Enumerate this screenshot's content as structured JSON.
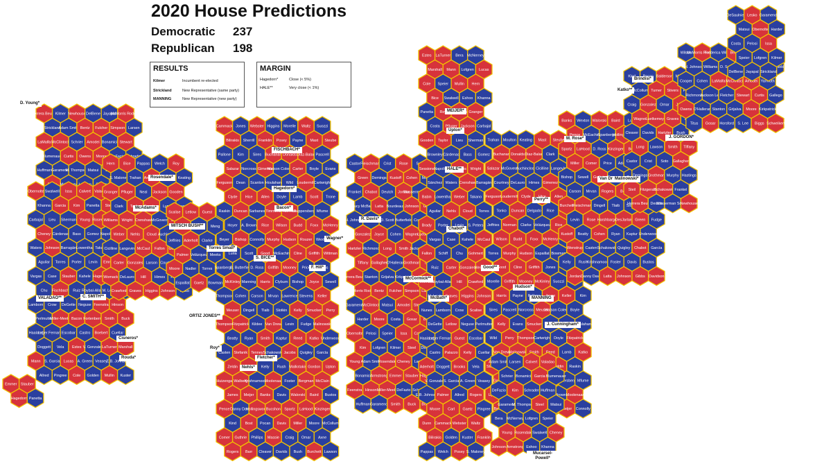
{
  "title": "2020 House Predictions",
  "tally": [
    {
      "party": "Democratic",
      "seats": "237"
    },
    {
      "party": "Republican",
      "seats": "198"
    }
  ],
  "legend_results": {
    "title": "RESULTS",
    "rows": [
      {
        "key": "Kilmer",
        "desc": "Incumbent re-elected",
        "style": "regular"
      },
      {
        "key": "Strickland",
        "desc": "New Representative (same party)",
        "style": "regular"
      },
      {
        "key": "MANNING",
        "desc": "New Representative (new party)",
        "style": "caps"
      }
    ]
  },
  "legend_margin": {
    "title": "MARGIN",
    "rows": [
      {
        "key": "Hagedorn*",
        "desc": "Close (< 5%)"
      },
      {
        "key": "HALE**",
        "desc": "Very close (< 1%)"
      }
    ]
  },
  "colors": {
    "democratic": "#2a3f9f",
    "republican": "#d7333b",
    "hex_border": "#f2c200"
  },
  "map_labels": {
    "dem": [
      "Kilmer",
      "DelBene",
      "Jayapal",
      "Strickland",
      "Adam Smith",
      "Larsen",
      "Schrier",
      "Bonamici",
      "Blumenauer",
      "DeFazio",
      "Schrader",
      "Huffman",
      "Garamendi",
      "M. Thompson",
      "Matsui",
      "Bera",
      "McNerney",
      "Lofgren",
      "Speier",
      "Swalwell",
      "Eshoo",
      "Khanna",
      "Panetta",
      "Costa",
      "Carbajal",
      "Lieu",
      "Sherman",
      "Brownley",
      "Cárdenas",
      "Bass",
      "Gomez",
      "Napolitano",
      "Sánchez",
      "Waters",
      "Barragán",
      "Lowenthal",
      "Takano",
      "Aguilar",
      "Torres",
      "Porter",
      "Levin",
      "S. Peters",
      "Vargas",
      "Case",
      "Kahele",
      "Schiff",
      "Chu",
      "Ruiz",
      "Roybal-Allard",
      "M. Levin",
      "Nunes",
      "Lamborn",
      "Crow",
      "DeGette",
      "Neguse",
      "Perlmutter",
      "Haaland",
      "Leger Fernandez",
      "Escobar",
      "Castro",
      "Cuellar",
      "Doggett",
      "Vela",
      "V. Gonzalez",
      "S. Garcia",
      "A. Green",
      "Veasey",
      "E.B. Johnson",
      "Allred",
      "Pingree",
      "Golden",
      "Kuster",
      "Pappas",
      "Welch",
      "S. Maloney",
      "Trahan",
      "Moulton",
      "Keating",
      "Neal",
      "Clark",
      "Lynch",
      "Pressley",
      "McGovern",
      "Auchincloss",
      "Cicilline",
      "Langevin",
      "Larson",
      "Courtney",
      "DeLauro",
      "Himes",
      "Hayes",
      "Tonko",
      "Delgado",
      "Rice",
      "Meng",
      "Jeffries",
      "Clarke",
      "Velázquez",
      "Meeks",
      "Nadler",
      "Torres",
      "Espaillat",
      "Bowman",
      "Jones",
      "Higgins",
      "Morelle",
      "Suozzi",
      "Sherrill",
      "Payne",
      "Pallone",
      "Kim",
      "Sires",
      "Pascrell",
      "Norcross",
      "Watson Coleman",
      "Boyle",
      "Evans",
      "Dean",
      "Scanlon",
      "Houlahan",
      "Wild",
      "Cartwright",
      "Doyle",
      "Lamb",
      "Trone",
      "Raskin",
      "Sarbanes",
      "Ruppersberger",
      "Mfume",
      "Hoyer",
      "A. Brown",
      "Beyer",
      "Connolly",
      "Wexton",
      "Luria",
      "Scott",
      "McEachin",
      "Spanberger",
      "G. Butterfield",
      "D. Ross",
      "Price",
      "Adams",
      "Manning",
      "Clyburn",
      "Bishop",
      "Sewell",
      "Thompson",
      "Cohen",
      "Carson",
      "Mrvan",
      "Lawrence",
      "Stevens",
      "Dingell",
      "Tlaib",
      "Slotkin",
      "Kildee",
      "Levin",
      "Fudge",
      "Beatty",
      "Ryan",
      "Kaptur",
      "Underwood",
      "Casten",
      "Schakowsky",
      "Quigley",
      "García",
      "Kelly",
      "Rush",
      "Krishnamoorthi",
      "Foster",
      "Davis",
      "Bustos",
      "Danny Davis",
      "Kind",
      "Pocan",
      "Moore",
      "McCollum",
      "Phillips",
      "Craig",
      "Omar",
      "Axne",
      "Cleaver",
      "Davids",
      "Bush",
      "Lawson",
      "Castor",
      "Crist",
      "Soto",
      "Demings",
      "Murphy",
      "Hastings",
      "Frankel",
      "Deutch",
      "Wasserman Schultz",
      "Wilson",
      "Frederica Wilson",
      "Lucy McBath",
      "Bourdeaux",
      "H. Johnson",
      "Williams",
      "D. Scott",
      "Butterfield",
      "Cooper",
      "Cohen",
      "Yarmuth",
      "Richmond",
      "Jackson Lee",
      "Fletcher",
      "Gallego",
      "O'Halleran",
      "Stanton",
      "Grijalva",
      "Kirkpatrick",
      "Titus",
      "Horsford",
      "S. Lee",
      "DeSaulnier",
      "Garamendi",
      "Matsui",
      "Harder",
      "Costa",
      "Pelosi",
      "Speier",
      "Lofgren"
    ],
    "rep": [
      "Herrera Beutler",
      "Newhouse",
      "McMorris Rodgers",
      "Bentz",
      "Fulcher",
      "Simpson",
      "LaMalfa",
      "McClintock",
      "Amodei",
      "Stewart",
      "Curtis",
      "Owens",
      "Moore",
      "Gosar",
      "Biggs",
      "Schweikert",
      "Lesko",
      "Obernolte",
      "Issa",
      "Calvert",
      "Valadao",
      "Garcia",
      "Kim",
      "Steel",
      "Young",
      "Rosendale",
      "Cheney",
      "Johnson",
      "Armstrong",
      "Emmer",
      "Stauber",
      "Hagedorn",
      "Fischbach",
      "Feenstra",
      "Hinson",
      "Miller-Meeks",
      "Bacon",
      "Fortenberry",
      "Smith",
      "Buck",
      "Boebert",
      "Estes",
      "LaTurner",
      "Marshall",
      "Mann",
      "Lucas",
      "Cole",
      "Mullin",
      "Hern",
      "Bice",
      "Roy",
      "Arrington",
      "Granger",
      "Pfluger",
      "Jackson",
      "Gooden",
      "Taylor",
      "Sessions",
      "Williams",
      "Wright",
      "Crenshaw",
      "Babin",
      "Weber",
      "Nehls",
      "Cloud",
      "Brady",
      "McCaul",
      "Fallon",
      "Gohmert",
      "Carter",
      "Gonzales",
      "Westerman",
      "Womack",
      "Hill",
      "Crawford",
      "Graves",
      "Higgins",
      "Johnson",
      "Scalise",
      "Letlow",
      "Guest",
      "Palazzo",
      "Kelly",
      "Aderholt",
      "Brooks",
      "Palmer",
      "Rogers",
      "Moore",
      "Carl",
      "Gaetz",
      "Dunn",
      "Cammack",
      "Webster",
      "Waltz",
      "Bilirakis",
      "Franklin",
      "Posey",
      "Mast",
      "Steube",
      "Buchanan",
      "Donalds",
      "Diaz-Balart",
      "Salazar",
      "Gimenez",
      "Carter",
      "Ferguson",
      "Loudermilk",
      "Clyde",
      "Hice",
      "Allen",
      "Scott",
      "Duncan",
      "Timmons",
      "Norman",
      "Rice",
      "Wilson",
      "Budd",
      "Foxx",
      "McHenry",
      "Bishop",
      "Murphy",
      "Hudson",
      "Rouzer",
      "Good",
      "Cline",
      "Griffith",
      "Wittman",
      "Griffith",
      "Mooney",
      "McKinley",
      "Harris",
      "Joyce",
      "Keller",
      "Meuser",
      "Kelly",
      "Smucker",
      "Perry",
      "Thompson",
      "Fitzpatrick",
      "Van Drew",
      "Malinowski",
      "Smith",
      "Reed",
      "Katko",
      "Stefanik",
      "Tenney",
      "Jacobs",
      "Zeldin",
      "Garbarino",
      "Malliotakis",
      "Gordon",
      "Upton",
      "Huizenga",
      "Walberg",
      "Moolenaar",
      "Bergman",
      "McClain",
      "James",
      "Meijer",
      "Banks",
      "Walorski",
      "Baird",
      "Pence",
      "Hollingsworth",
      "Bucshon",
      "Spartz",
      "LaHood",
      "Kinzinger",
      "Bost",
      "Davis",
      "Miller",
      "Comer",
      "Guthrie",
      "Massie",
      "Rogers",
      "Barr",
      "Burchett",
      "Fleischmann",
      "Rose",
      "Harshbarger",
      "DesJarlais",
      "Green",
      "Kustoff",
      "Cohen",
      "Wenstrup",
      "Chabot",
      "Jordan",
      "Latta",
      "Johnson",
      "Gibbs",
      "Davidson",
      "Balderson",
      "Turner",
      "Stivers",
      "Gonzalez",
      "Joyce",
      "Wagner",
      "Luetkemeyer",
      "Graves",
      "Hartzler",
      "Long",
      "Smith",
      "Tiffany",
      "Gallagher",
      "Grothman",
      "Steil",
      "Fitzgerald",
      "Schakowsky"
    ]
  },
  "outside_labels": {
    "d_young": "D. Young*",
    "mcmorris": "McMorris Rodgers",
    "rosendale": "Rosendale*",
    "cheney": "L. Cheney",
    "mcadams": "McAdams*",
    "mitsch_bush": "MITSCH BUSH**",
    "torres_small": "Torres Small*",
    "s_bice": "S. BICE**",
    "ortiz_jones": "ORTIZ JONES**",
    "valadao": "VALADAO**",
    "c_smith": "C. SMITH**",
    "cisneros": "Cisneros*",
    "rouda": "Rouda*",
    "roy": "Roy*",
    "nehls": "Nehls*",
    "fletcher": "Fletcher*",
    "hagedorn": "Hagedorn*",
    "fischbach": "FISCHBACH*",
    "bacon": "Bacon*",
    "wagner": "Wagner*",
    "hill": "F. Hill*",
    "r_davis": "R. Davis*",
    "chabot": "Chabot*",
    "hale": "HALE**",
    "upton": "Upton*",
    "meijer": "MEIJER*",
    "mccormick": "McCormick**",
    "mcbath": "McBath*",
    "good": "Good**",
    "hudson": "Hudson*",
    "manning": "MANNING",
    "cunningham": "J. Cunningham*",
    "perry": "Perry**",
    "van_drew": "Van Drew*",
    "malinowski": "Malinowski*",
    "katko": "Katko**",
    "brindisi": "Brindisi*",
    "gordon": "J. GORDON*",
    "m_rose": "M. Rose*",
    "mucarsel": "Mucarsel-Powell*",
    "d_young2": "D. Young*",
    "rosendale2": "Rosendale*",
    "case": "Case",
    "kahele": "Kahele"
  }
}
